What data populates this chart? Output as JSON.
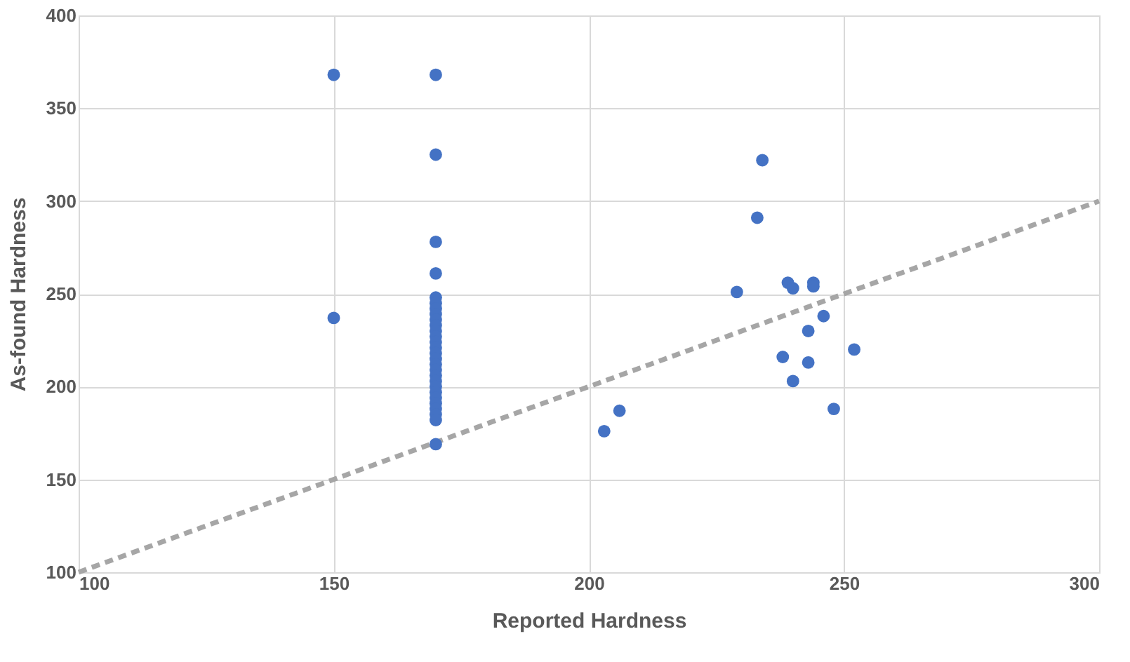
{
  "chart_data": {
    "type": "scatter",
    "xlabel": "Reported Hardness",
    "ylabel": "As-found Hardness",
    "xlim": [
      100,
      300
    ],
    "ylim": [
      100,
      400
    ],
    "xticks": [
      100,
      150,
      200,
      250,
      300
    ],
    "yticks": [
      100,
      150,
      200,
      250,
      300,
      350,
      400
    ],
    "grid": true,
    "marker": "circle",
    "series": [
      {
        "color": "#4472c4",
        "x": [
          150,
          150,
          170,
          170,
          170,
          170,
          170,
          170,
          170,
          170,
          170,
          170,
          170,
          170,
          170,
          170,
          170,
          170,
          170,
          170,
          170,
          170,
          170,
          170,
          170,
          170,
          170,
          170,
          170,
          170,
          234,
          233,
          229,
          239,
          240,
          244,
          244,
          246,
          243,
          252,
          238,
          243,
          240,
          248,
          206,
          203
        ],
        "values": [
          368,
          237,
          368,
          325,
          278,
          261,
          248,
          245,
          242,
          239,
          236,
          233,
          230,
          227,
          224,
          221,
          218,
          215,
          212,
          209,
          206,
          203,
          200,
          197,
          194,
          191,
          188,
          185,
          182,
          169,
          322,
          291,
          251,
          256,
          253,
          256,
          254,
          238,
          230,
          220,
          216,
          213,
          203,
          188,
          187,
          176
        ]
      },
      {
        "type": "line",
        "marker": "none",
        "color": "#a6a6a6",
        "line_style": "dashed",
        "x": [
          100,
          300
        ],
        "values": [
          100,
          300
        ]
      }
    ]
  }
}
